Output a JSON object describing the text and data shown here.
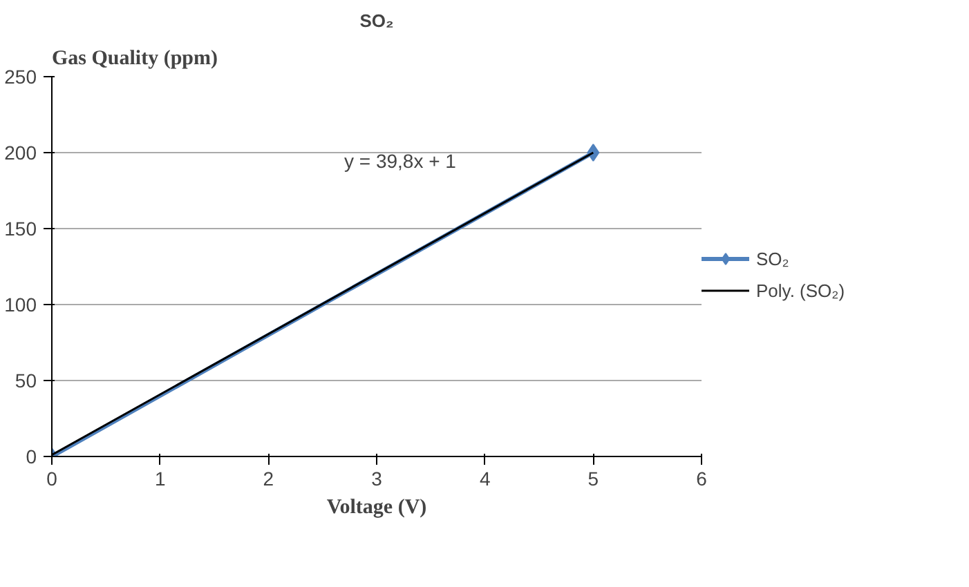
{
  "chart_data": {
    "type": "line",
    "title": "SO₂",
    "xlabel": "Voltage (V)",
    "ylabel": "Gas Quality (ppm)",
    "x": [
      0,
      5
    ],
    "series": [
      {
        "name": "SO₂",
        "color": "#4f81bd",
        "values": [
          0,
          200
        ],
        "marker": "diamond"
      },
      {
        "name": "Poly. (SO₂)",
        "color": "#000000",
        "x": [
          0,
          5
        ],
        "values": [
          1,
          200
        ],
        "marker": "none"
      }
    ],
    "annotations": [
      "y = 39,8x + 1"
    ],
    "xlim": [
      0,
      6
    ],
    "xticks": [
      0,
      1,
      2,
      3,
      4,
      5,
      6
    ],
    "ylim": [
      0,
      250
    ],
    "yticks": [
      0,
      50,
      100,
      150,
      200,
      250
    ],
    "grid": "y",
    "legend": "right",
    "line_style": "solid"
  }
}
